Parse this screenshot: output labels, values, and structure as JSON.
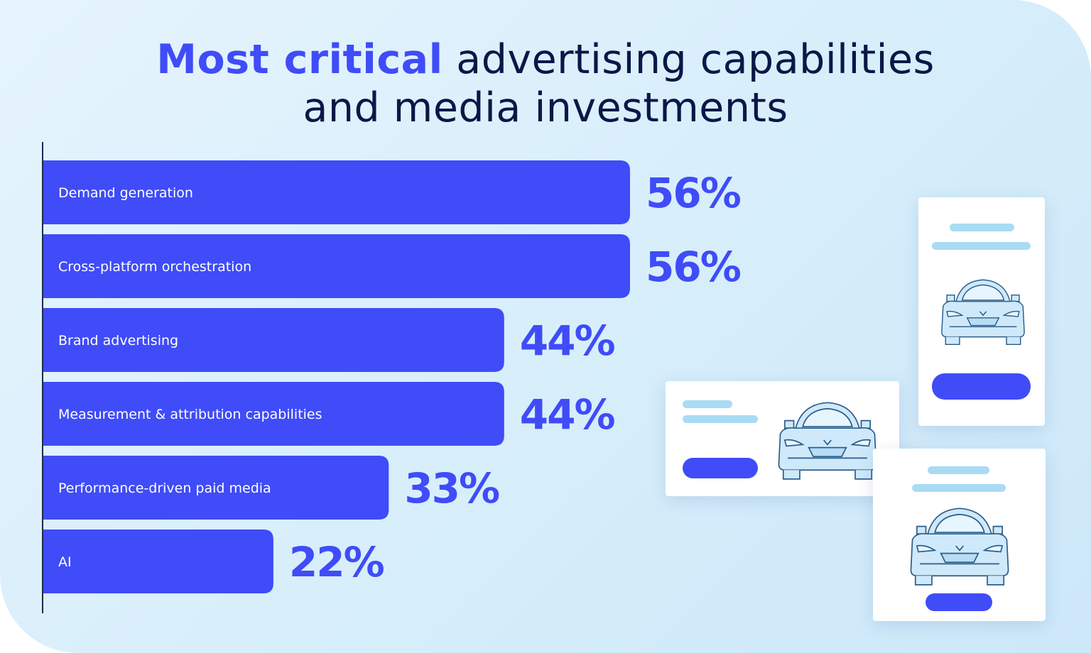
{
  "title": {
    "highlight": "Most critical",
    "rest_line1": "advertising capabilities",
    "line2": "and media investments"
  },
  "colors": {
    "bar": "#3f4cf8",
    "value_text": "#3f4cf8",
    "title_text": "#0b1747",
    "card_line": "#a9dbf4"
  },
  "chart_data": {
    "type": "bar",
    "orientation": "horizontal",
    "title": "Most critical advertising capabilities and media investments",
    "categories": [
      "Demand generation",
      "Cross-platform orchestration",
      "Brand advertising",
      "Measurement & attribution capabilities",
      "Performance-driven paid media",
      "AI"
    ],
    "values": [
      56,
      56,
      44,
      44,
      33,
      22
    ],
    "value_labels": [
      "56%",
      "56%",
      "44%",
      "44%",
      "33%",
      "22%"
    ],
    "unit": "%",
    "xlim": [
      0,
      100
    ],
    "xlabel": "",
    "ylabel": "",
    "grid": false,
    "legend": "none"
  },
  "illustration": {
    "icons": [
      "car-icon",
      "car-icon",
      "car-icon"
    ]
  }
}
